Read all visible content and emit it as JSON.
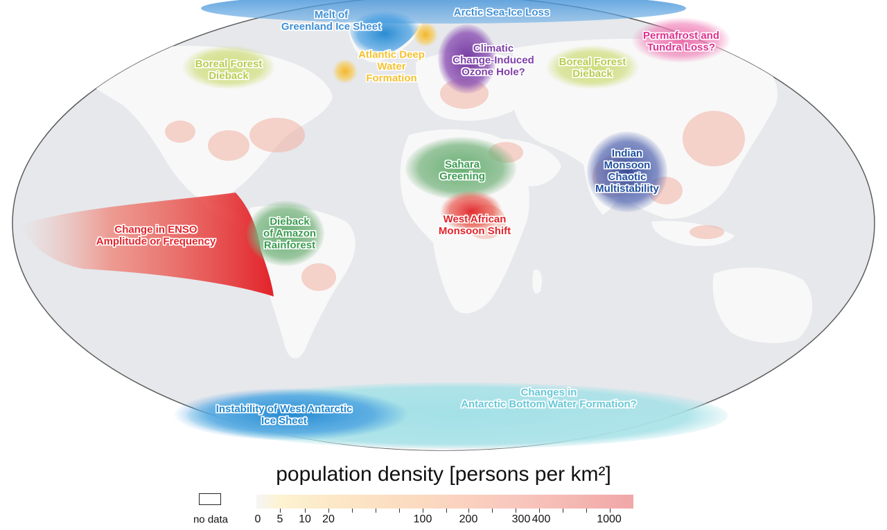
{
  "map": {
    "projection": "world",
    "colors": {
      "ocean": "#e6e8ec",
      "land": "#f8f8f8",
      "populated": "#f7cdb8"
    }
  },
  "tipping_elements": [
    {
      "id": "arctic-sea-ice-loss",
      "text": "Arctic Sea-Ice Loss",
      "color": "#3f8fd6"
    },
    {
      "id": "melt-of-greenland-ice-sheet",
      "text": "Melt of\nGreenland Ice Sheet",
      "color": "#3f8fd6"
    },
    {
      "id": "atlantic-deep-water-formation",
      "text": "Atlantic Deep\nWater\nFormation",
      "color": "#f5c12f"
    },
    {
      "id": "climatic-change-induced-ozone-hole",
      "text": "Climatic\nChange-Induced\nOzone Hole?",
      "color": "#7e3fa8"
    },
    {
      "id": "boreal-forest-dieback-west",
      "text": "Boreal Forest\nDieback",
      "color": "#b7cc4e"
    },
    {
      "id": "boreal-forest-dieback-east",
      "text": "Boreal Forest\nDieback",
      "color": "#b7cc4e"
    },
    {
      "id": "permafrost-and-tundra-loss",
      "text": "Permafrost and\nTundra Loss?",
      "color": "#de2f8e"
    },
    {
      "id": "sahara-greening",
      "text": "Sahara\nGreening",
      "color": "#3a9b50"
    },
    {
      "id": "indian-monsoon-chaotic-multistability",
      "text": "Indian\nMonsoon\nChaotic\nMultistability",
      "color": "#1f4fa0"
    },
    {
      "id": "west-african-monsoon-shift",
      "text": "West African\nMonsoon Shift",
      "color": "#e2232a"
    },
    {
      "id": "change-in-enso",
      "text": "Change in ENSO\nAmplitude or Frequency",
      "color": "#e2232a"
    },
    {
      "id": "dieback-of-amazon-rainforest",
      "text": "Dieback\nof Amazon\nRainforest",
      "color": "#3a9b50"
    },
    {
      "id": "instability-of-west-antarctic-ice-sheet",
      "text": "Instability of West Antarctic\nIce Sheet",
      "color": "#1f86d0"
    },
    {
      "id": "changes-in-antarctic-bottom-water-formation",
      "text": "Changes in\nAntarctic Bottom Water Formation?",
      "color": "#66c8d6"
    }
  ],
  "legend": {
    "title": "population density [persons per km²]",
    "no_data_label": "no data",
    "ticks": [
      "0",
      "5",
      "10",
      "20",
      "100",
      "200",
      "300",
      "400",
      "1000"
    ]
  }
}
